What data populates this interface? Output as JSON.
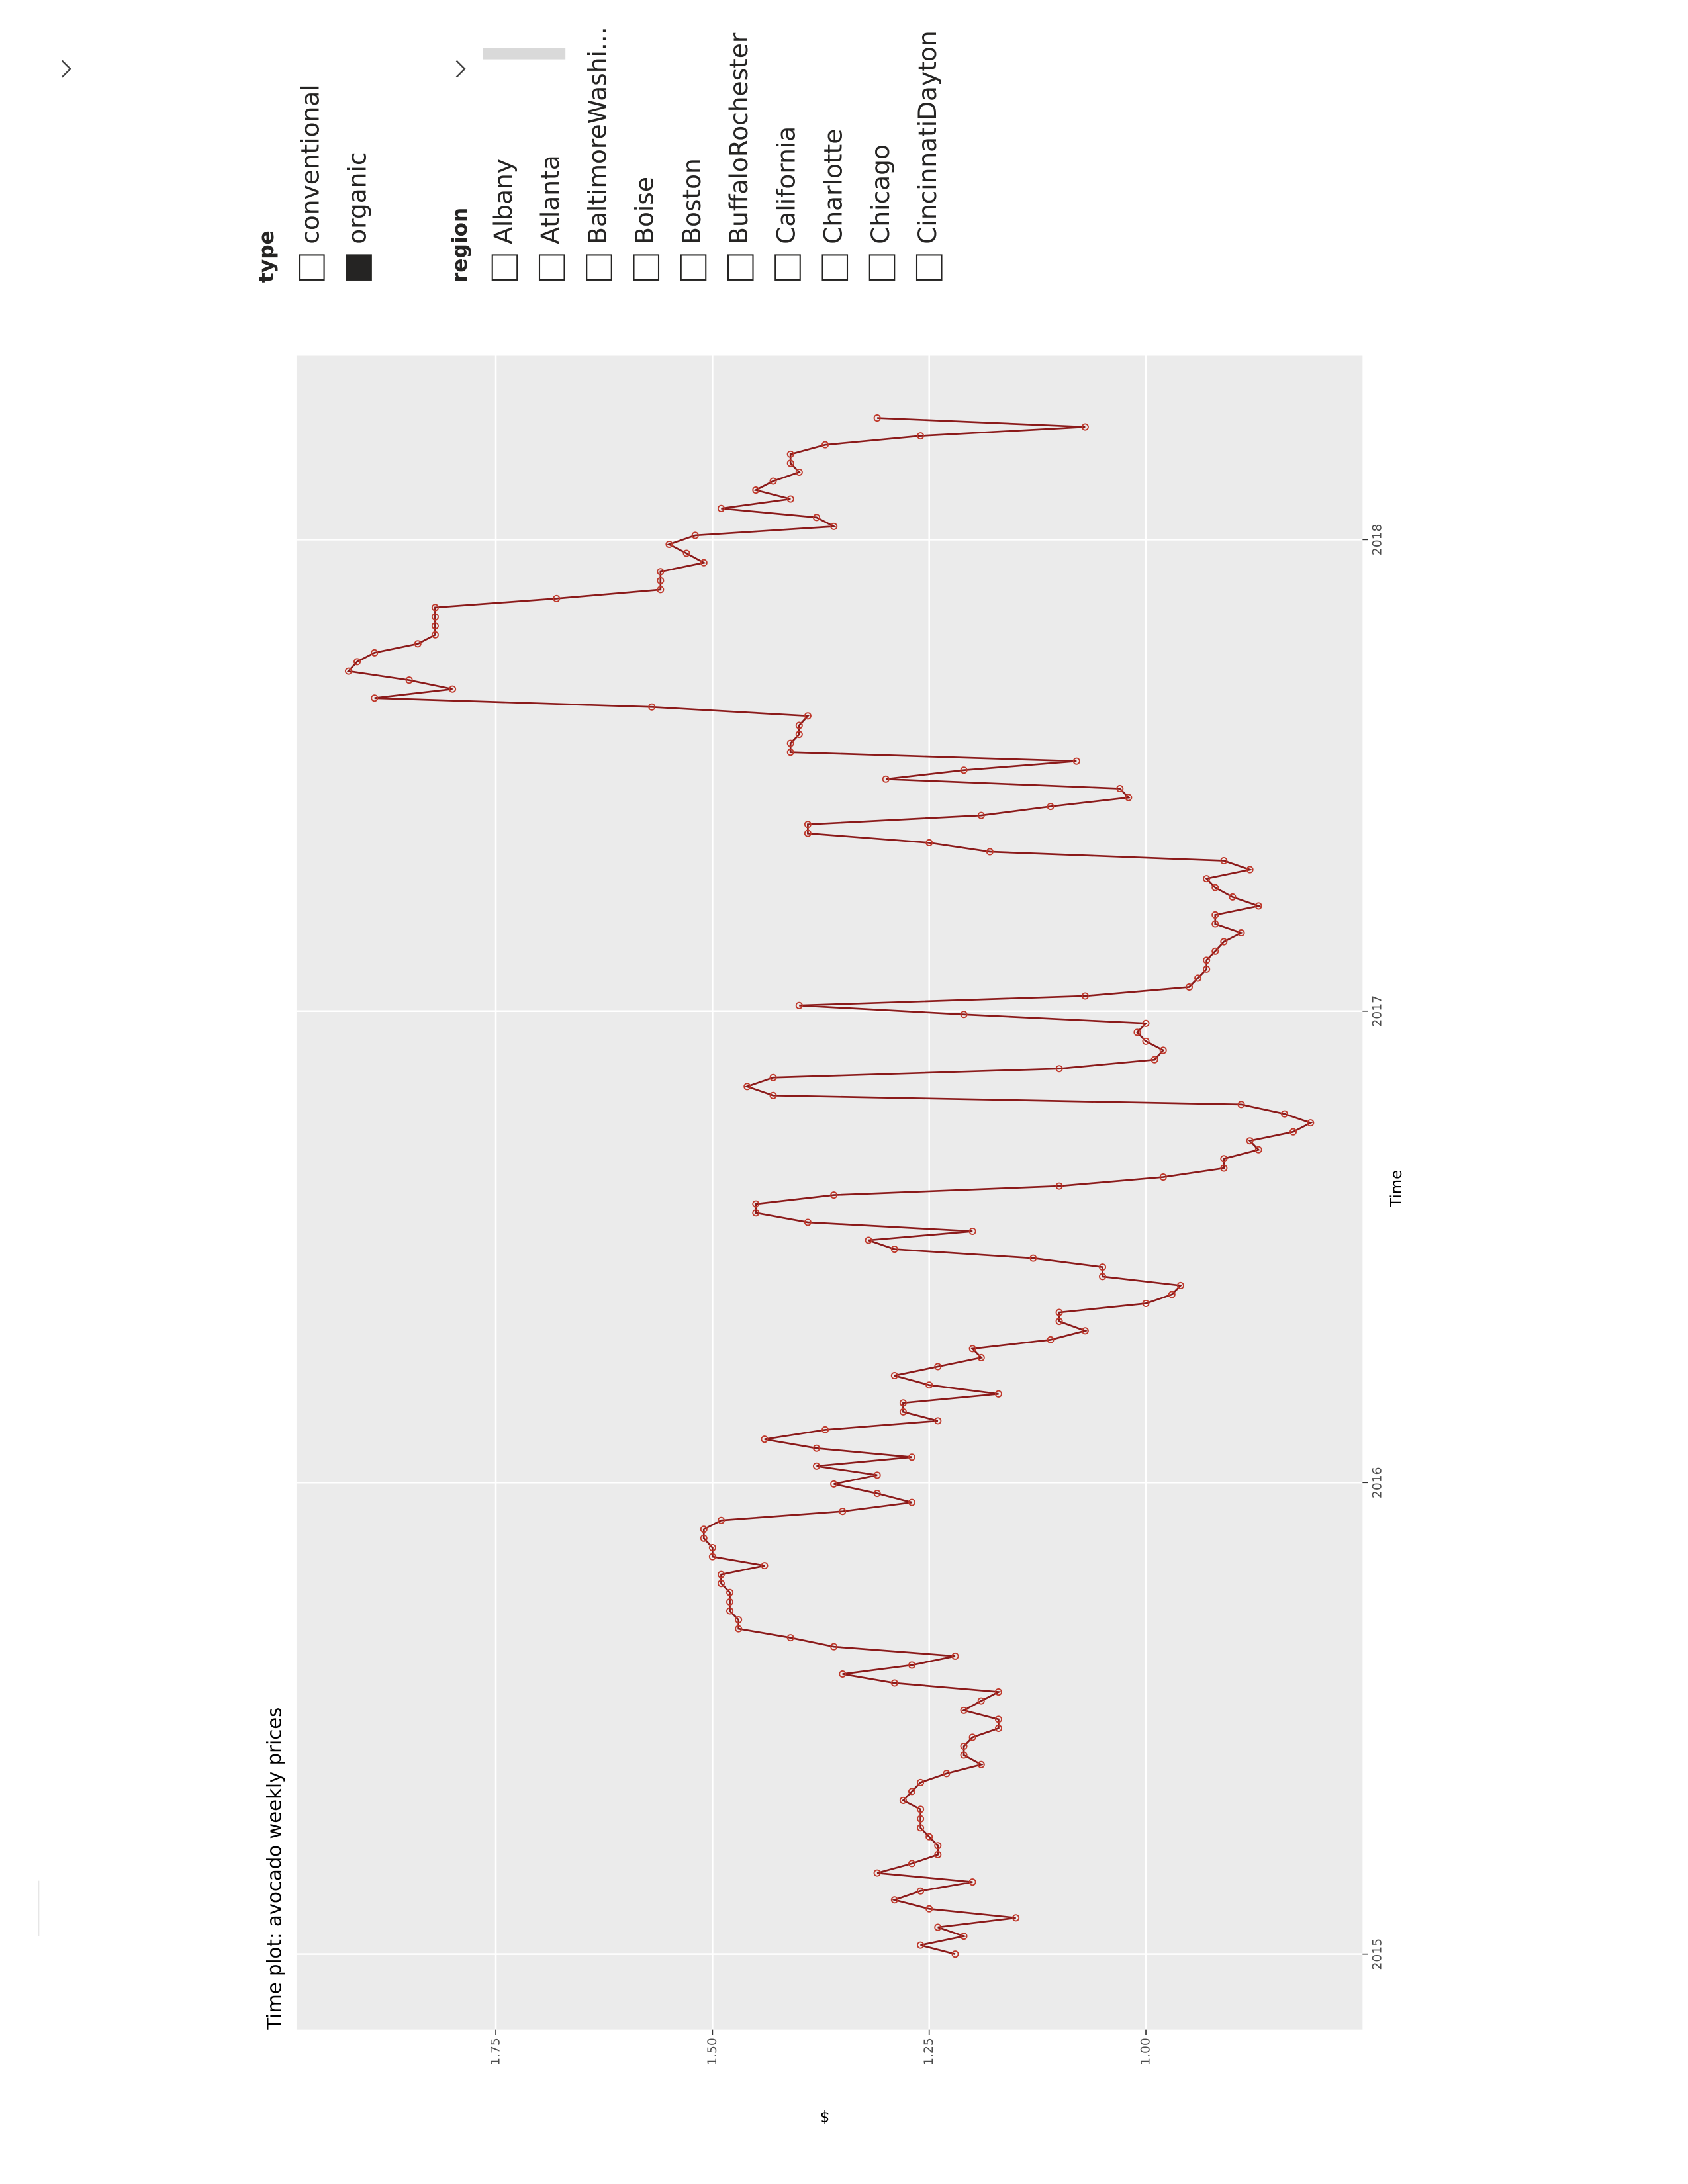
{
  "chart_data": {
    "type": "line",
    "title": "Time plot: avocado weekly prices",
    "x_label": "Time",
    "y_label": "$",
    "color": "#8b1a1a",
    "marker_color": "#c0392b",
    "grid": true,
    "xlim": [
      2014.84,
      2018.39
    ],
    "xticks": [
      2015,
      2016,
      2017,
      2018
    ],
    "ylim": [
      0.75,
      1.98
    ],
    "yticks": [
      {
        "value": 1,
        "label": "1.00"
      },
      1.25,
      {
        "value": 1.5,
        "label": "1.50"
      },
      1.75
    ],
    "x": [
      2015.0,
      2015.019,
      2015.038,
      2015.057,
      2015.077,
      2015.096,
      2015.115,
      2015.134,
      2015.153,
      2015.172,
      2015.192,
      2015.211,
      2015.23,
      2015.249,
      2015.268,
      2015.287,
      2015.307,
      2015.326,
      2015.345,
      2015.364,
      2015.383,
      2015.402,
      2015.422,
      2015.441,
      2015.46,
      2015.479,
      2015.498,
      2015.517,
      2015.537,
      2015.556,
      2015.575,
      2015.594,
      2015.613,
      2015.632,
      2015.652,
      2015.671,
      2015.69,
      2015.709,
      2015.728,
      2015.747,
      2015.767,
      2015.786,
      2015.805,
      2015.824,
      2015.843,
      2015.862,
      2015.882,
      2015.901,
      2015.92,
      2015.939,
      2015.958,
      2015.977,
      2015.997,
      2016.016,
      2016.035,
      2016.054,
      2016.073,
      2016.092,
      2016.112,
      2016.131,
      2016.15,
      2016.169,
      2016.188,
      2016.207,
      2016.227,
      2016.246,
      2016.265,
      2016.284,
      2016.303,
      2016.322,
      2016.342,
      2016.361,
      2016.38,
      2016.399,
      2016.418,
      2016.437,
      2016.457,
      2016.476,
      2016.495,
      2016.514,
      2016.533,
      2016.552,
      2016.572,
      2016.591,
      2016.61,
      2016.629,
      2016.648,
      2016.667,
      2016.687,
      2016.706,
      2016.725,
      2016.744,
      2016.763,
      2016.782,
      2016.802,
      2016.821,
      2016.84,
      2016.859,
      2016.878,
      2016.897,
      2016.917,
      2016.936,
      2016.955,
      2016.974,
      2016.993,
      2017.012,
      2017.032,
      2017.051,
      2017.07,
      2017.089,
      2017.108,
      2017.127,
      2017.147,
      2017.166,
      2017.185,
      2017.204,
      2017.223,
      2017.242,
      2017.262,
      2017.281,
      2017.3,
      2017.319,
      2017.338,
      2017.357,
      2017.377,
      2017.396,
      2017.415,
      2017.434,
      2017.453,
      2017.472,
      2017.492,
      2017.511,
      2017.53,
      2017.549,
      2017.568,
      2017.587,
      2017.606,
      2017.626,
      2017.645,
      2017.664,
      2017.683,
      2017.702,
      2017.721,
      2017.741,
      2017.76,
      2017.779,
      2017.798,
      2017.817,
      2017.836,
      2017.856,
      2017.875,
      2017.894,
      2017.913,
      2017.932,
      2017.951,
      2017.971,
      2017.99,
      2018.009,
      2018.028,
      2018.047,
      2018.066,
      2018.086,
      2018.105,
      2018.124,
      2018.143,
      2018.162,
      2018.181,
      2018.201,
      2018.22,
      2018.239,
      2018.258
    ],
    "values": [
      1.22,
      1.26,
      1.21,
      1.24,
      1.15,
      1.25,
      1.29,
      1.26,
      1.2,
      1.31,
      1.27,
      1.24,
      1.24,
      1.25,
      1.26,
      1.26,
      1.26,
      1.28,
      1.27,
      1.26,
      1.23,
      1.19,
      1.21,
      1.21,
      1.2,
      1.17,
      1.17,
      1.21,
      1.19,
      1.17,
      1.29,
      1.35,
      1.27,
      1.22,
      1.36,
      1.41,
      1.47,
      1.47,
      1.48,
      1.48,
      1.48,
      1.49,
      1.49,
      1.44,
      1.5,
      1.5,
      1.51,
      1.51,
      1.49,
      1.35,
      1.27,
      1.31,
      1.36,
      1.31,
      1.38,
      1.27,
      1.38,
      1.44,
      1.37,
      1.24,
      1.28,
      1.28,
      1.17,
      1.25,
      1.29,
      1.24,
      1.19,
      1.2,
      1.11,
      1.07,
      1.1,
      1.1,
      1.0,
      0.97,
      0.96,
      1.05,
      1.05,
      1.13,
      1.29,
      1.32,
      1.2,
      1.39,
      1.45,
      1.45,
      1.36,
      1.1,
      0.98,
      0.91,
      0.91,
      0.87,
      0.88,
      0.83,
      0.81,
      0.84,
      0.89,
      1.43,
      1.46,
      1.43,
      1.1,
      0.99,
      0.98,
      1.0,
      1.01,
      1.0,
      1.21,
      1.4,
      1.07,
      0.95,
      0.94,
      0.93,
      0.93,
      0.92,
      0.91,
      0.89,
      0.92,
      0.92,
      0.87,
      0.9,
      0.92,
      0.93,
      0.88,
      0.91,
      1.18,
      1.25,
      1.39,
      1.39,
      1.19,
      1.11,
      1.02,
      1.03,
      1.3,
      1.21,
      1.08,
      1.41,
      1.41,
      1.4,
      1.4,
      1.39,
      1.57,
      1.89,
      1.8,
      1.85,
      1.92,
      1.91,
      1.89,
      1.84,
      1.82,
      1.82,
      1.82,
      1.82,
      1.68,
      1.56,
      1.56,
      1.56,
      1.51,
      1.53,
      1.55,
      1.52,
      1.36,
      1.38,
      1.49,
      1.41,
      1.45,
      1.43,
      1.4,
      1.41,
      1.41,
      1.37,
      1.26,
      1.07,
      1.31
    ]
  },
  "slicers": [
    {
      "title": "type",
      "items": [
        "conventional",
        "organic"
      ],
      "selected": [
        false,
        true
      ]
    },
    {
      "title": "region",
      "items": [
        "Albany",
        "Atlanta",
        "BaltimoreWashi...",
        "Boise",
        "Boston",
        "BuffaloRochester",
        "California",
        "Charlotte",
        "Chicago",
        "CincinnatiDayton"
      ],
      "selected": [
        false,
        false,
        false,
        false,
        false,
        false,
        false,
        false,
        false,
        false
      ]
    }
  ]
}
